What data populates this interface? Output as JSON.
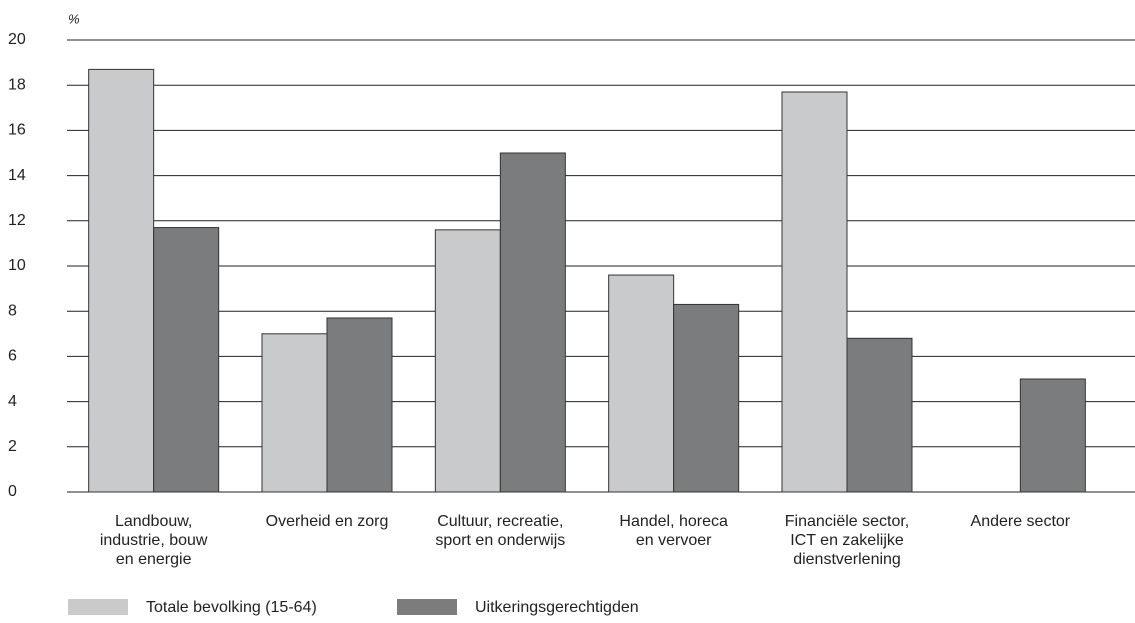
{
  "chart_data": {
    "type": "bar",
    "y_label": "%",
    "categories": [
      "Landbouw,\nindustrie, bouw\nen energie",
      "Overheid en zorg",
      "Cultuur, recreatie,\nsport en onderwijs",
      "Handel, horeca\nen vervoer",
      "Financiële sector,\nICT en zakelijke\ndienstverlening",
      "Andere sector"
    ],
    "series": [
      {
        "name": "Totale bevolking (15-64)",
        "color": "#c9cacc",
        "values": [
          18.7,
          7.0,
          11.6,
          9.6,
          17.7,
          null
        ]
      },
      {
        "name": "Uitkeringsgerechtigden",
        "color": "#7b7c7e",
        "values": [
          11.7,
          7.7,
          15.0,
          8.3,
          6.8,
          5.0
        ]
      }
    ],
    "ylim": [
      0,
      20
    ],
    "yticks": [
      0,
      2,
      4,
      6,
      8,
      10,
      12,
      14,
      16,
      18,
      20
    ],
    "grid": true,
    "legend": "bottom"
  }
}
